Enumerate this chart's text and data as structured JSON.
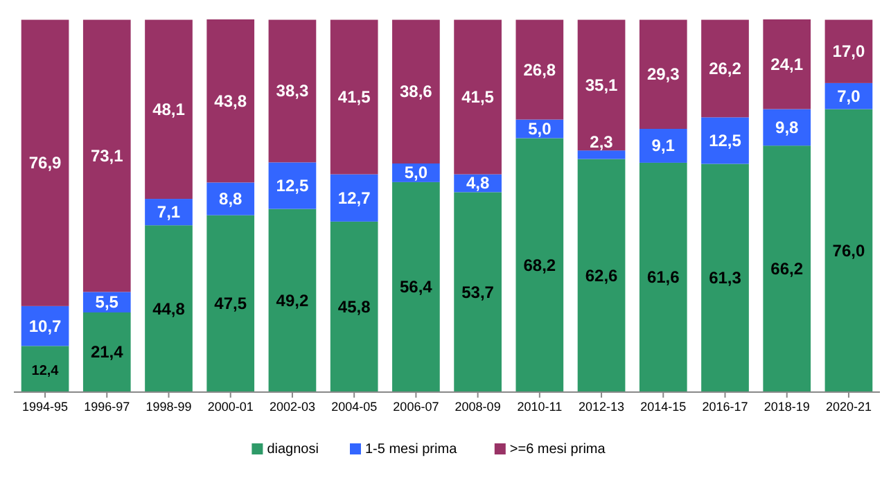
{
  "chart_data": {
    "type": "bar",
    "stacked": true,
    "tick_labels": "x",
    "grid": false,
    "legend": "bottom",
    "ylim": [
      0,
      100.1
    ],
    "categories": [
      "1994-95",
      "1996-97",
      "1998-99",
      "2000-01",
      "2002-03",
      "2004-05",
      "2006-07",
      "2008-09",
      "2010-11",
      "2012-13",
      "2014-15",
      "2016-17",
      "2018-19",
      "2020-21"
    ],
    "series": [
      {
        "name": "diagnosi",
        "color": "#2e9a68",
        "values": [
          12.4,
          21.4,
          44.8,
          47.5,
          49.2,
          45.8,
          56.4,
          53.7,
          68.2,
          62.6,
          61.6,
          61.3,
          66.2,
          76.0
        ],
        "value_labels": [
          "12,4",
          "21,4",
          "44,8",
          "47,5",
          "49,2",
          "45,8",
          "56,4",
          "53,7",
          "68,2",
          "62,6",
          "61,6",
          "61,3",
          "66,2",
          "76,0"
        ]
      },
      {
        "name": "1-5 mesi prima",
        "color": "#3366ff",
        "values": [
          10.7,
          5.5,
          7.1,
          8.8,
          12.5,
          12.7,
          5.0,
          4.8,
          5.0,
          2.3,
          9.1,
          12.5,
          9.8,
          7.0
        ],
        "value_labels": [
          "10,7",
          "5,5",
          "7,1",
          "8,8",
          "12,5",
          "12,7",
          "5,0",
          "4,8",
          "5,0",
          "2,3",
          "9,1",
          "12,5",
          "9,8",
          "7,0"
        ]
      },
      {
        "name": ">=6 mesi prima",
        "color": "#993366",
        "values": [
          76.9,
          73.1,
          48.1,
          43.8,
          38.3,
          41.5,
          38.6,
          41.5,
          26.8,
          35.1,
          29.3,
          26.2,
          24.1,
          17.0
        ],
        "value_labels": [
          "76,9",
          "73,1",
          "48,1",
          "43,8",
          "38,3",
          "41,5",
          "38,6",
          "41,5",
          "26,8",
          "35,1",
          "29,3",
          "26,2",
          "24,1",
          "17,0"
        ]
      }
    ]
  }
}
